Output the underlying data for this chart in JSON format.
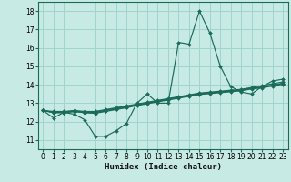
{
  "xlabel": "Humidex (Indice chaleur)",
  "background_color": "#c8eae5",
  "grid_color": "#a0d4ce",
  "line_color": "#1a6b5a",
  "xlim": [
    -0.5,
    23.5
  ],
  "ylim": [
    10.5,
    18.5
  ],
  "yticks": [
    11,
    12,
    13,
    14,
    15,
    16,
    17,
    18
  ],
  "xticks": [
    0,
    1,
    2,
    3,
    4,
    5,
    6,
    7,
    8,
    9,
    10,
    11,
    12,
    13,
    14,
    15,
    16,
    17,
    18,
    19,
    20,
    21,
    22,
    23
  ],
  "series": [
    [
      12.6,
      12.2,
      12.5,
      12.4,
      12.1,
      11.2,
      11.2,
      11.5,
      11.9,
      13.0,
      13.5,
      13.0,
      13.0,
      16.3,
      16.2,
      18.0,
      16.8,
      15.0,
      13.9,
      13.6,
      13.5,
      13.9,
      14.2,
      14.3
    ],
    [
      12.6,
      12.55,
      12.55,
      12.6,
      12.55,
      12.55,
      12.65,
      12.75,
      12.85,
      12.95,
      13.05,
      13.15,
      13.25,
      13.35,
      13.45,
      13.55,
      13.6,
      13.65,
      13.7,
      13.75,
      13.85,
      13.95,
      14.05,
      14.15
    ],
    [
      12.6,
      12.52,
      12.52,
      12.58,
      12.52,
      12.5,
      12.62,
      12.72,
      12.82,
      12.92,
      13.02,
      13.12,
      13.22,
      13.32,
      13.42,
      13.52,
      13.57,
      13.62,
      13.67,
      13.72,
      13.82,
      13.88,
      13.98,
      14.08
    ],
    [
      12.6,
      12.5,
      12.5,
      12.56,
      12.5,
      12.48,
      12.58,
      12.68,
      12.78,
      12.9,
      13.0,
      13.1,
      13.2,
      13.3,
      13.4,
      13.5,
      13.55,
      13.6,
      13.65,
      13.7,
      13.8,
      13.86,
      13.96,
      14.06
    ],
    [
      12.6,
      12.48,
      12.48,
      12.54,
      12.48,
      12.45,
      12.55,
      12.65,
      12.75,
      12.87,
      12.97,
      13.07,
      13.17,
      13.27,
      13.37,
      13.47,
      13.52,
      13.57,
      13.62,
      13.67,
      13.77,
      13.83,
      13.93,
      14.03
    ]
  ]
}
